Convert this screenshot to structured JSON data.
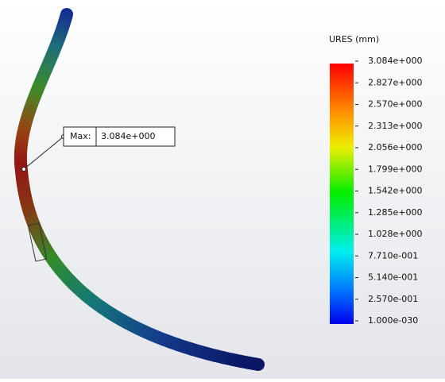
{
  "legend": {
    "title": "URES (mm)",
    "labels": [
      "3.084e+000",
      "2.827e+000",
      "2.570e+000",
      "2.313e+000",
      "2.056e+000",
      "1.799e+000",
      "1.542e+000",
      "1.285e+000",
      "1.028e+000",
      "7.710e-001",
      "5.140e-001",
      "2.570e-001",
      "1.000e-030"
    ]
  },
  "annotation": {
    "label": "Max:",
    "value": "3.084e+000"
  }
}
